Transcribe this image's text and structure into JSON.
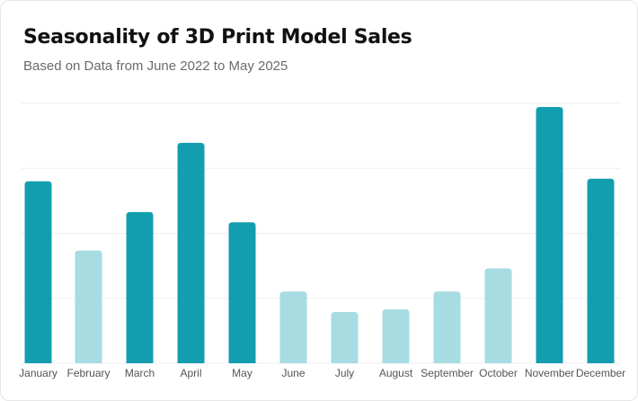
{
  "chart_data": {
    "type": "bar",
    "title": "Seasonality of 3D Print Model Sales",
    "subtitle": "Based on Data from June 2022 to May 2025",
    "categories": [
      "January",
      "February",
      "March",
      "April",
      "May",
      "June",
      "July",
      "August",
      "September",
      "October",
      "November",
      "December"
    ],
    "values": [
      71,
      44,
      59,
      86,
      55,
      28,
      20,
      21,
      28,
      37,
      100,
      72
    ],
    "ylim": [
      0,
      100
    ],
    "grid": true,
    "colors": {
      "highlight": "#139EB0",
      "muted": "#A7DCE2",
      "grid": "#EFEFEF"
    },
    "highlighted": [
      true,
      false,
      true,
      true,
      true,
      false,
      false,
      false,
      false,
      false,
      true,
      true
    ]
  }
}
